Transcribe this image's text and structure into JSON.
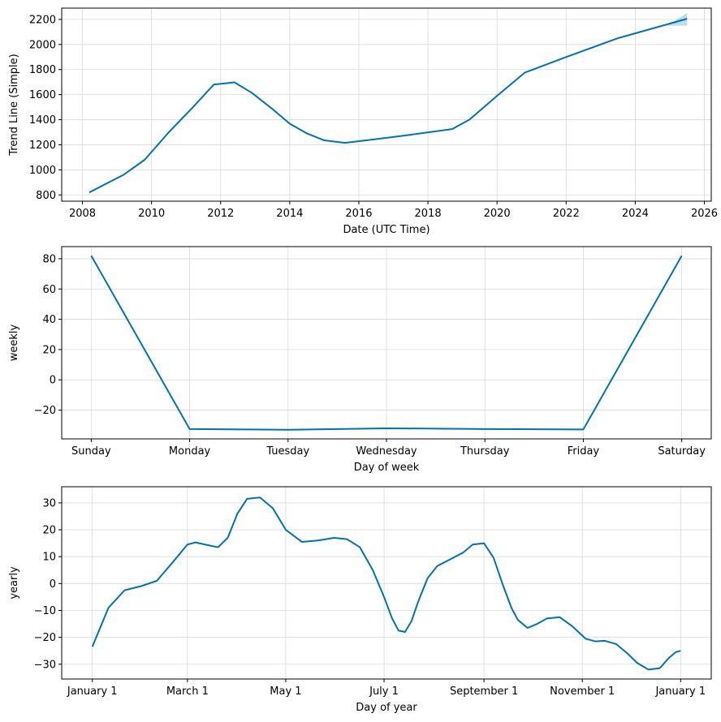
{
  "figure": {
    "line_color": "#0072b2",
    "band_color": "#0072b2",
    "grid_color": "#d9d9d9"
  },
  "chart_data": [
    {
      "type": "line",
      "xlabel": "Date (UTC Time)",
      "ylabel": "Trend Line (Simple)",
      "grid": true,
      "xlim": [
        2007.4,
        2026.2
      ],
      "ylim": [
        750,
        2290
      ],
      "x_ticks": [
        2008,
        2010,
        2012,
        2014,
        2016,
        2018,
        2020,
        2022,
        2024,
        2026
      ],
      "x_tick_labels": [
        "2008",
        "2010",
        "2012",
        "2014",
        "2016",
        "2018",
        "2020",
        "2022",
        "2024",
        "2026"
      ],
      "y_ticks": [
        800,
        1000,
        1200,
        1400,
        1600,
        1800,
        2000,
        2200
      ],
      "y_tick_labels": [
        "800",
        "1000",
        "1200",
        "1400",
        "1600",
        "1800",
        "2000",
        "2200"
      ],
      "series": [
        {
          "x": [
            2008.2,
            2009.2,
            2009.8,
            2010.5,
            2011.2,
            2011.8,
            2012.4,
            2012.9,
            2013.5,
            2014.0,
            2014.5,
            2015.0,
            2015.6,
            2016.5,
            2017.5,
            2018.7,
            2019.2,
            2020.0,
            2020.8,
            2022.0,
            2023.5,
            2025.5
          ],
          "y": [
            820,
            962,
            1080,
            1300,
            1500,
            1680,
            1698,
            1615,
            1485,
            1368,
            1290,
            1235,
            1215,
            1245,
            1280,
            1325,
            1400,
            1590,
            1775,
            1900,
            2050,
            2205
          ]
        }
      ],
      "band": {
        "x": [
          2024.9,
          2025.5
        ],
        "upper": [
          2150,
          2250
        ],
        "lower": [
          2150,
          2150
        ]
      }
    },
    {
      "type": "line",
      "xlabel": "Day of week",
      "ylabel": "weekly",
      "grid": true,
      "xlim": [
        -0.3,
        6.3
      ],
      "ylim": [
        -39,
        88
      ],
      "categories": [
        "Sunday",
        "Monday",
        "Tuesday",
        "Wednesday",
        "Thursday",
        "Friday",
        "Saturday"
      ],
      "y_ticks": [
        -20,
        0,
        20,
        40,
        60,
        80
      ],
      "y_tick_labels": [
        "−20",
        "0",
        "20",
        "40",
        "60",
        "80"
      ],
      "series": [
        {
          "x": [
            0,
            1,
            2,
            3,
            4,
            5,
            6
          ],
          "y": [
            82,
            -32.5,
            -33,
            -32,
            -32.5,
            -32.8,
            82
          ]
        }
      ]
    },
    {
      "type": "line",
      "xlabel": "Day of year",
      "ylabel": "yearly",
      "grid": true,
      "xlim": [
        -19,
        384
      ],
      "ylim": [
        -35.5,
        36
      ],
      "x_ticks": [
        0,
        59,
        120,
        181,
        243,
        304,
        365
      ],
      "x_tick_labels": [
        "January 1",
        "March 1",
        "May 1",
        "July 1",
        "September 1",
        "November 1",
        "January 1"
      ],
      "y_ticks": [
        -30,
        -20,
        -10,
        0,
        10,
        20,
        30
      ],
      "y_tick_labels": [
        "−30",
        "−20",
        "−10",
        "0",
        "10",
        "20",
        "30"
      ],
      "series": [
        {
          "x": [
            0,
            10,
            20,
            30,
            40,
            50,
            59,
            64,
            70,
            78,
            84,
            90,
            96,
            104,
            112,
            120,
            130,
            140,
            150,
            158,
            166,
            174,
            181,
            186,
            190,
            194,
            198,
            202,
            208,
            214,
            222,
            230,
            236,
            243,
            249,
            255,
            260,
            264,
            270,
            276,
            282,
            290,
            298,
            306,
            312,
            318,
            325,
            332,
            338,
            345,
            352,
            358,
            362,
            365
          ],
          "y": [
            -23.5,
            -9,
            -2.5,
            -1,
            1,
            8,
            14.5,
            15.3,
            14.5,
            13.5,
            17,
            26,
            31.5,
            32,
            28,
            20,
            15.5,
            16,
            17,
            16.5,
            13.5,
            5,
            -5,
            -13,
            -17.5,
            -18,
            -14,
            -7,
            2,
            6.5,
            9,
            11.5,
            14.5,
            15,
            9.5,
            -1,
            -9,
            -13.5,
            -16.5,
            -15,
            -13,
            -12.5,
            -16,
            -20.5,
            -21.5,
            -21.3,
            -22.5,
            -26,
            -29.5,
            -32,
            -31.5,
            -27.5,
            -25.5,
            -25
          ]
        }
      ]
    }
  ]
}
